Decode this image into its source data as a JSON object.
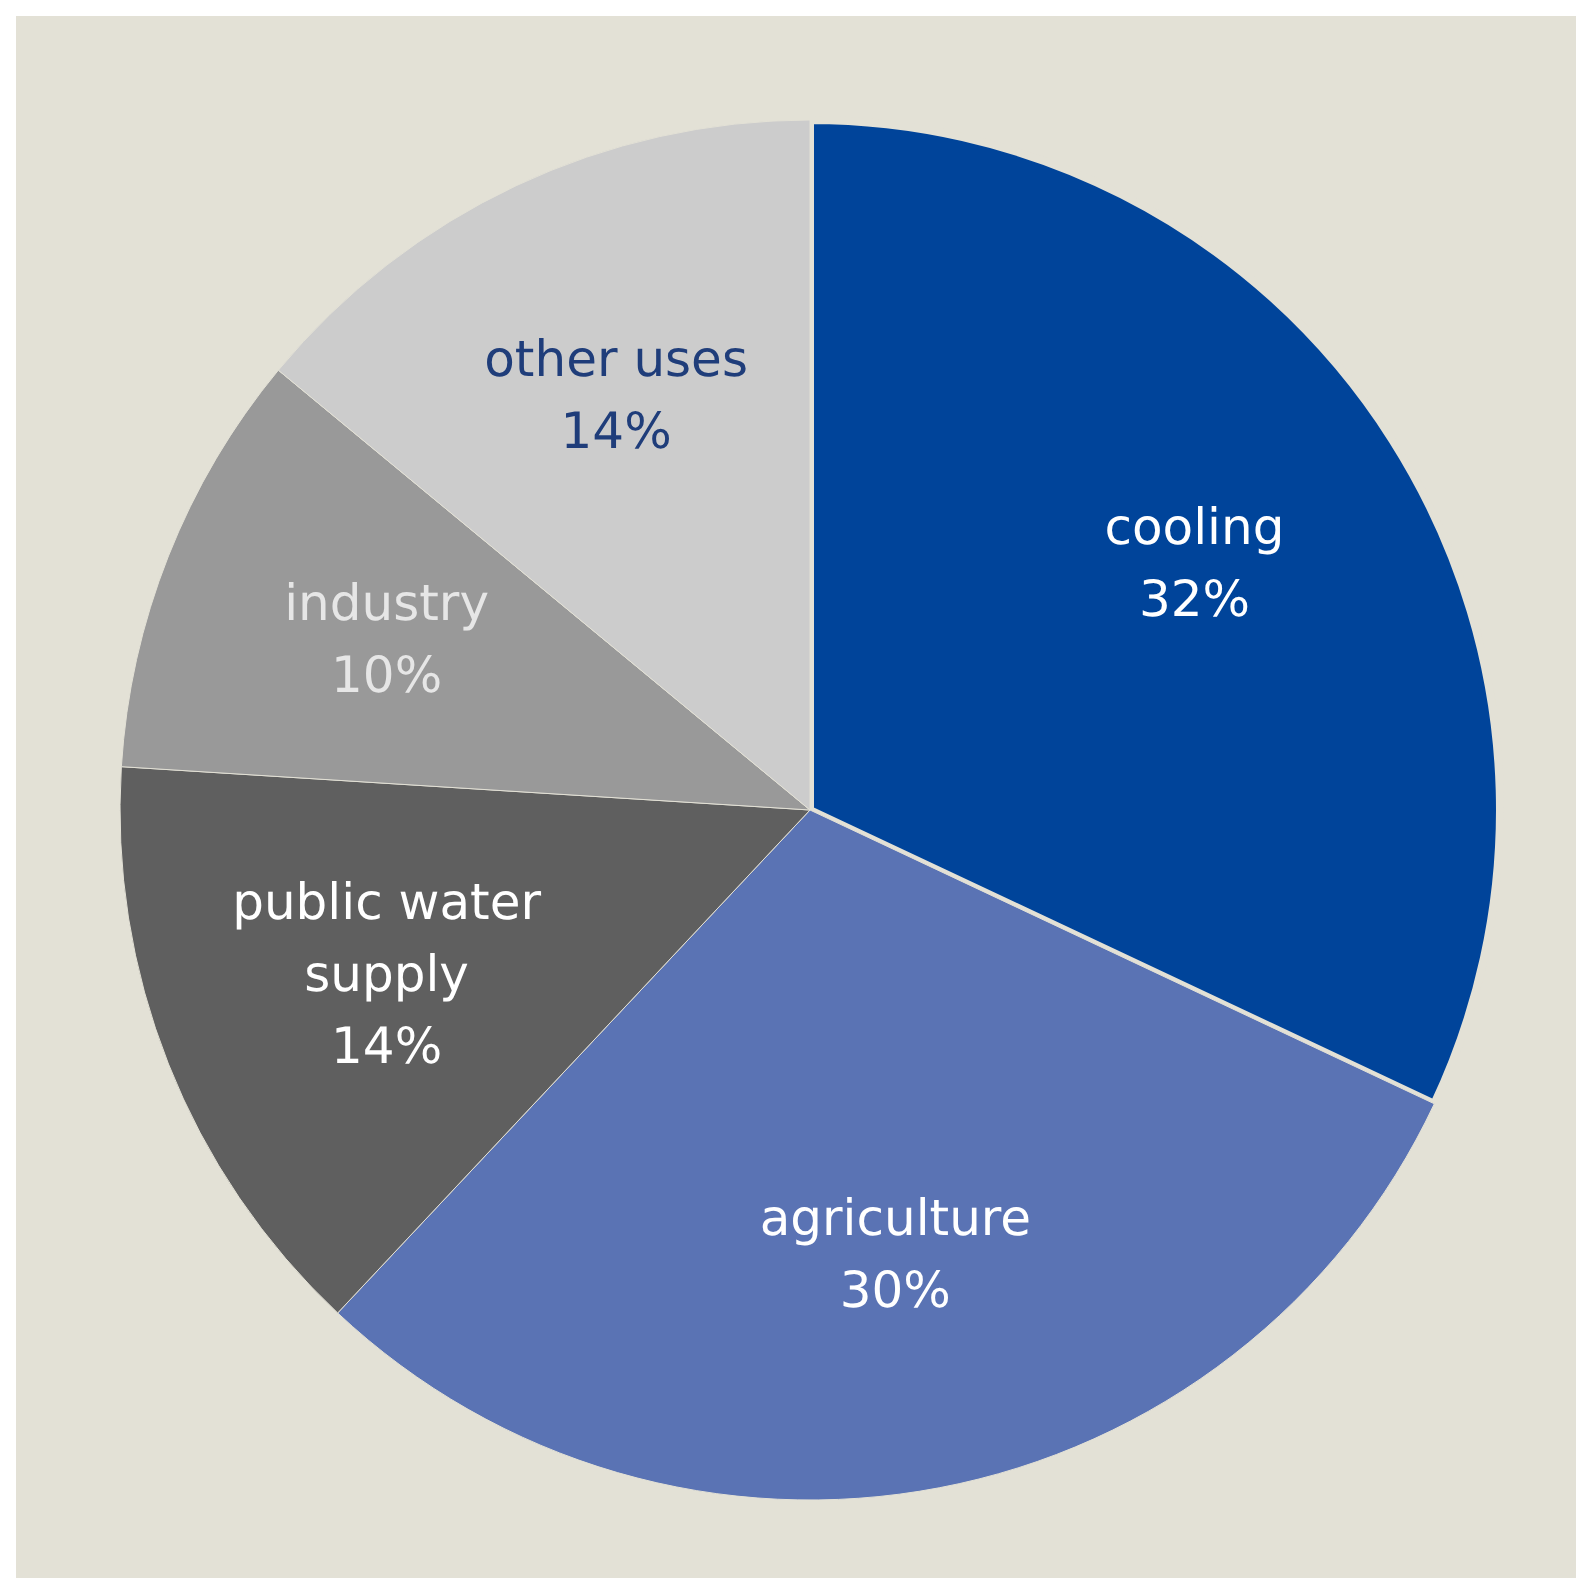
{
  "chart_data": {
    "type": "pie",
    "categories": [
      "cooling",
      "agriculture",
      "public water supply",
      "industry",
      "other uses"
    ],
    "values": [
      32,
      30,
      14,
      10,
      14
    ],
    "colors": [
      "#00449a",
      "#5a73b4",
      "#5f5f5f",
      "#999999",
      "#cccccc"
    ],
    "value_labels": [
      "32%",
      "30%",
      "14%",
      "10%",
      "14%"
    ]
  }
}
